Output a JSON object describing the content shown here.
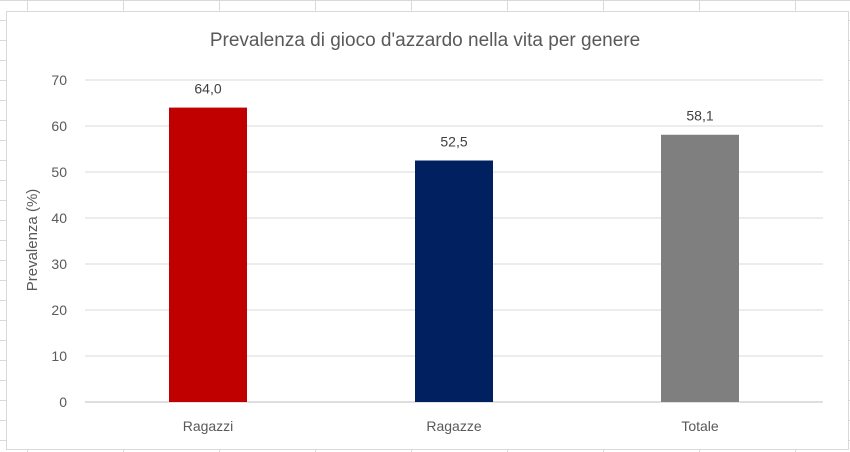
{
  "chart_data": {
    "type": "bar",
    "title": "Prevalenza di gioco d'azzardo nella vita per genere",
    "xlabel": "",
    "ylabel": "Prevalenza (%)",
    "ylim": [
      0,
      70
    ],
    "yticks": [
      0,
      10,
      20,
      30,
      40,
      50,
      60,
      70
    ],
    "categories": [
      "Ragazzi",
      "Ragazze",
      "Totale"
    ],
    "values": [
      64.0,
      52.5,
      58.1
    ],
    "data_labels": [
      "64,0",
      "52,5",
      "58,1"
    ],
    "bar_colors": [
      "#c00000",
      "#002060",
      "#7f7f7f"
    ],
    "grid": true,
    "legend": "none"
  }
}
